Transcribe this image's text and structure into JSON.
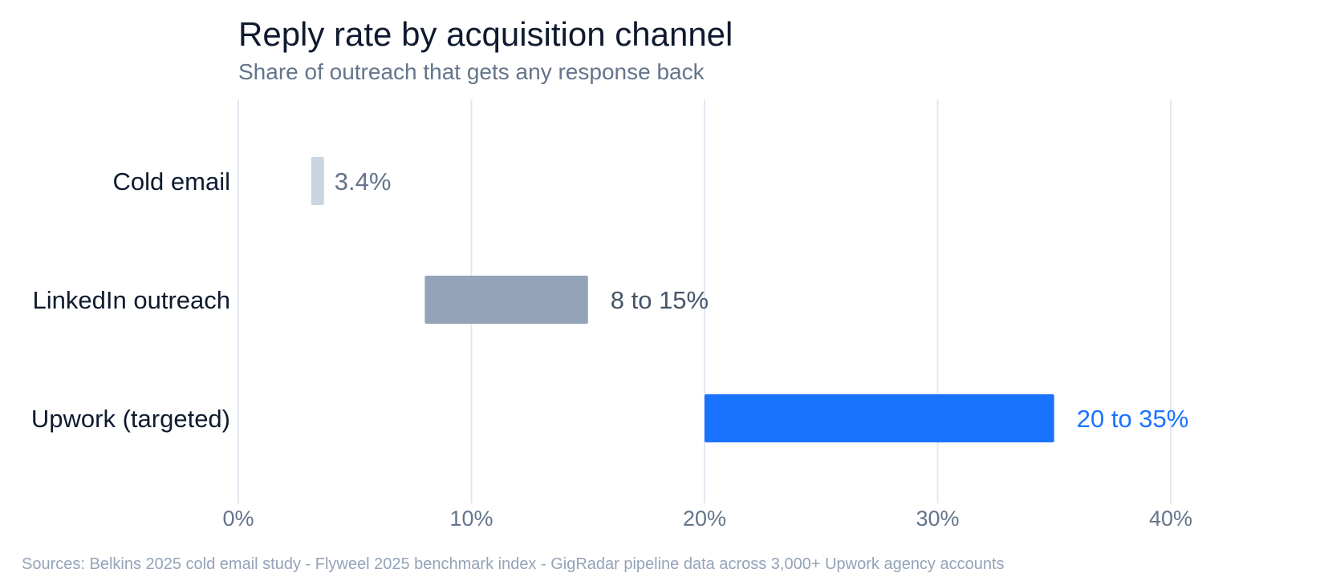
{
  "chart_data": {
    "type": "bar",
    "orientation": "horizontal",
    "title": "Reply rate by acquisition channel",
    "subtitle": "Share of outreach that gets any response back",
    "xlabel": "",
    "ylabel": "",
    "xlim": [
      0,
      40
    ],
    "x_ticks": [
      0,
      10,
      20,
      30,
      40
    ],
    "x_tick_labels": [
      "0%",
      "10%",
      "20%",
      "30%",
      "40%"
    ],
    "grid": "vertical",
    "legend": "none",
    "categories": [
      "Cold email",
      "LinkedIn outreach",
      "Upwork (targeted)"
    ],
    "ranges": [
      [
        3.4,
        3.4
      ],
      [
        8,
        15
      ],
      [
        20,
        35
      ]
    ],
    "value_labels": [
      "3.4%",
      "8 to 15%",
      "20 to 35%"
    ],
    "bar_colors": [
      "#cbd5e1",
      "#94a3b8",
      "#1a73ff"
    ],
    "label_colors": [
      "#64748b",
      "#475569",
      "#1a73ff"
    ],
    "source": "Sources: Belkins 2025 cold email study - Flyweel 2025 benchmark index - GigRadar pipeline data across 3,000+ Upwork agency accounts"
  }
}
